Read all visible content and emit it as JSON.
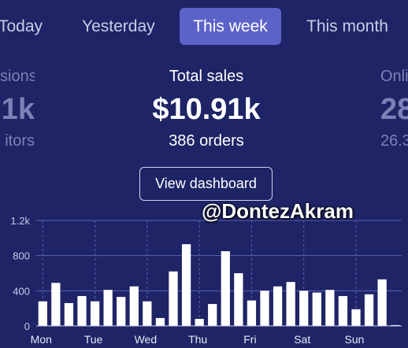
{
  "tabs": [
    {
      "label": "Today",
      "active": false
    },
    {
      "label": "Yesterday",
      "active": false
    },
    {
      "label": "This week",
      "active": true
    },
    {
      "label": "This month",
      "active": false
    }
  ],
  "stats": {
    "left": {
      "label": "sions",
      "value": "1k",
      "sub": "itors"
    },
    "center": {
      "label": "Total sales",
      "value": "$10.91k",
      "sub": "386 orders"
    },
    "right": {
      "label": "Onli",
      "value": "28",
      "sub": "26.3"
    }
  },
  "dashboard_button": "View dashboard",
  "watermark": "@DontezAkram",
  "colors": {
    "background": "#1e2465",
    "accent": "#5b63c9",
    "bar": "#ffffff",
    "grid": "#5a62b8"
  },
  "chart_data": {
    "type": "bar",
    "y_ticks": [
      "0",
      "400",
      "800",
      "1.2k"
    ],
    "ylim": [
      0,
      1200
    ],
    "x_labels": [
      "Mon",
      "Tue",
      "Wed",
      "Thu",
      "Fri",
      "Sat",
      "Sun"
    ],
    "values": [
      280,
      490,
      260,
      340,
      280,
      410,
      330,
      450,
      280,
      90,
      620,
      930,
      80,
      250,
      850,
      600,
      290,
      400,
      450,
      500,
      400,
      380,
      410,
      340,
      190,
      360,
      530,
      10
    ],
    "grid": true
  }
}
